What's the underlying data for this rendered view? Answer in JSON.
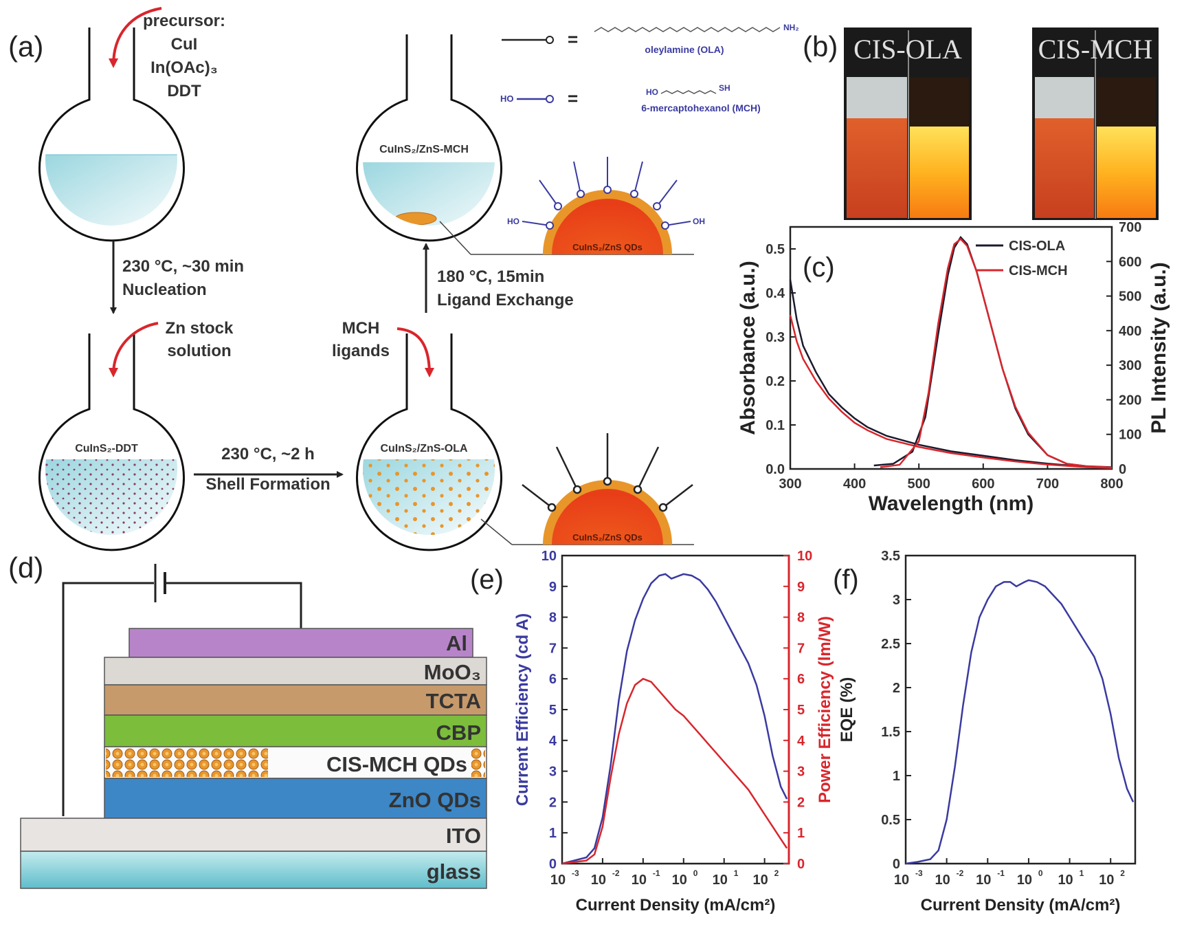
{
  "panel_a": {
    "label": "(a)",
    "precursor": [
      "precursor:",
      "CuI",
      "In(OAc)₃",
      "DDT"
    ],
    "nucleation": [
      "230 °C, ~30 min",
      "Nucleation"
    ],
    "zn_stock": [
      "Zn stock",
      "solution"
    ],
    "flask_ddt": "CuInS₂-DDT",
    "shell": [
      "230 °C, ~2 h",
      "Shell Formation"
    ],
    "mch_ligands": [
      "MCH",
      "ligands"
    ],
    "flask_ola": "CuInS₂/ZnS-OLA",
    "ligand_exchange": [
      "180 °C, 15min",
      "Ligand Exchange"
    ],
    "flask_mch": "CuInS₂/ZnS-MCH",
    "qd_label": "CuInS₂/ZnS QDs",
    "legend_ola_end": "NH₂",
    "legend_ola_name": "oleylamine (OLA)",
    "legend_mch_left": "HO",
    "legend_mch_end": "SH",
    "legend_mch_name": "6-mercaptohexanol (MCH)",
    "ligand_oh": "OH",
    "ligand_ho": "HO",
    "equals": "="
  },
  "panel_b": {
    "label": "(b)",
    "vials": [
      "CIS-OLA",
      "CIS-MCH"
    ]
  },
  "panel_d": {
    "label": "(d)",
    "layers": [
      {
        "name": "Al",
        "color": "#b784c9"
      },
      {
        "name": "MoO₃",
        "color": "#dcd8d4"
      },
      {
        "name": "TCTA",
        "color": "#c79a6c"
      },
      {
        "name": "CBP",
        "color": "#7cbd3c"
      },
      {
        "name": "CIS-MCH QDs",
        "color": "#e9a23a"
      },
      {
        "name": "ZnO QDs",
        "color": "#3d87c6"
      },
      {
        "name": "ITO",
        "color": "#e8e4e2"
      },
      {
        "name": "glass",
        "color": "#8fd0d8"
      }
    ]
  },
  "colors": {
    "black_series": "#1a1a2e",
    "red_series": "#d8262c",
    "blue_series": "#3a3aa0",
    "red_axis": "#d8262c"
  },
  "chart_data": [
    {
      "id": "c",
      "label": "(c)",
      "type": "line",
      "xlabel": "Wavelength (nm)",
      "ylabel": "Absorbance (a.u.)",
      "y2label": "PL Intensity (a.u.)",
      "xlim": [
        300,
        800
      ],
      "ylim": [
        0,
        0.55
      ],
      "y2lim": [
        0,
        700
      ],
      "xticks": [
        300,
        400,
        500,
        600,
        700,
        800
      ],
      "yticks": [
        0.0,
        0.1,
        0.2,
        0.3,
        0.4,
        0.5
      ],
      "y2ticks": [
        0,
        100,
        200,
        300,
        400,
        500,
        600,
        700
      ],
      "ytick_labels": [
        "0.0",
        "0.1",
        "0.2",
        "0.3",
        "0.4",
        "0.5"
      ],
      "legend": [
        "CIS-OLA",
        "CIS-MCH"
      ],
      "series": [
        {
          "name": "CIS-OLA absorbance",
          "axis": "left",
          "color": "#1a1a2e",
          "x": [
            300,
            310,
            320,
            340,
            360,
            380,
            400,
            420,
            450,
            500,
            550,
            600,
            650,
            700,
            750,
            800
          ],
          "y": [
            0.43,
            0.34,
            0.28,
            0.22,
            0.17,
            0.14,
            0.115,
            0.095,
            0.075,
            0.055,
            0.04,
            0.03,
            0.02,
            0.012,
            0.006,
            0.003
          ]
        },
        {
          "name": "CIS-MCH absorbance",
          "axis": "left",
          "color": "#d8262c",
          "x": [
            300,
            310,
            320,
            340,
            360,
            380,
            400,
            420,
            450,
            500,
            550,
            600,
            650,
            700,
            750,
            800
          ],
          "y": [
            0.35,
            0.29,
            0.25,
            0.2,
            0.16,
            0.13,
            0.105,
            0.088,
            0.068,
            0.05,
            0.036,
            0.026,
            0.017,
            0.01,
            0.005,
            0.002
          ]
        },
        {
          "name": "CIS-OLA PL",
          "axis": "right",
          "color": "#1a1a2e",
          "x": [
            430,
            460,
            490,
            510,
            530,
            545,
            555,
            565,
            575,
            590,
            610,
            630,
            650,
            670,
            700,
            730,
            760,
            800
          ],
          "y": [
            10,
            15,
            50,
            150,
            390,
            560,
            640,
            670,
            650,
            570,
            430,
            290,
            175,
            100,
            40,
            15,
            8,
            5
          ]
        },
        {
          "name": "CIS-MCH PL",
          "axis": "right",
          "color": "#d8262c",
          "x": [
            440,
            470,
            500,
            515,
            530,
            545,
            555,
            565,
            575,
            590,
            610,
            630,
            650,
            670,
            700,
            730,
            760,
            800
          ],
          "y": [
            5,
            12,
            80,
            220,
            420,
            580,
            650,
            665,
            645,
            570,
            430,
            290,
            180,
            105,
            40,
            15,
            8,
            4
          ]
        }
      ]
    },
    {
      "id": "e",
      "label": "(e)",
      "type": "line",
      "xlabel": "Current Density (mA/cm²)",
      "ylabel": "Current Efficiency (cd A)",
      "y2label": "Power Efficiency (lm/W)",
      "xscale": "log",
      "xlim": [
        -3,
        2.6
      ],
      "ylim": [
        0,
        10
      ],
      "y2lim": [
        0,
        10
      ],
      "xticks": [
        -3,
        -2,
        -1,
        0,
        1,
        2
      ],
      "xtick_base": "10",
      "xtick_exps": [
        "-3",
        "-2",
        "-1",
        "0",
        "1",
        "2"
      ],
      "yticks": [
        0,
        1,
        2,
        3,
        4,
        5,
        6,
        7,
        8,
        9,
        10
      ],
      "y2ticks": [
        0,
        1,
        2,
        3,
        4,
        5,
        6,
        7,
        8,
        9,
        10
      ],
      "series": [
        {
          "name": "Current Efficiency",
          "axis": "left",
          "color": "#3a3aa0",
          "logx": [
            -3.0,
            -2.7,
            -2.4,
            -2.2,
            -2.0,
            -1.8,
            -1.6,
            -1.4,
            -1.2,
            -1.0,
            -0.8,
            -0.6,
            -0.45,
            -0.3,
            -0.1,
            0.0,
            0.2,
            0.4,
            0.6,
            0.8,
            1.0,
            1.2,
            1.4,
            1.6,
            1.8,
            2.0,
            2.2,
            2.4,
            2.55
          ],
          "y": [
            0.0,
            0.1,
            0.2,
            0.5,
            1.5,
            3.2,
            5.3,
            6.9,
            7.9,
            8.6,
            9.1,
            9.35,
            9.4,
            9.25,
            9.35,
            9.4,
            9.35,
            9.2,
            8.9,
            8.5,
            8.0,
            7.5,
            7.0,
            6.5,
            5.8,
            4.8,
            3.5,
            2.5,
            2.1
          ]
        },
        {
          "name": "Power Efficiency",
          "axis": "right",
          "color": "#d8262c",
          "logx": [
            -3.0,
            -2.7,
            -2.4,
            -2.2,
            -2.0,
            -1.8,
            -1.6,
            -1.4,
            -1.2,
            -1.0,
            -0.8,
            -0.6,
            -0.4,
            -0.2,
            0.0,
            0.2,
            0.4,
            0.6,
            0.8,
            1.0,
            1.2,
            1.4,
            1.6,
            1.8,
            2.0,
            2.2,
            2.4,
            2.55
          ],
          "y": [
            0.0,
            0.05,
            0.1,
            0.3,
            1.2,
            2.8,
            4.2,
            5.2,
            5.8,
            6.0,
            5.9,
            5.6,
            5.3,
            5.0,
            4.8,
            4.5,
            4.2,
            3.9,
            3.6,
            3.3,
            3.0,
            2.7,
            2.4,
            2.0,
            1.6,
            1.2,
            0.8,
            0.5
          ]
        }
      ]
    },
    {
      "id": "f",
      "label": "(f)",
      "type": "line",
      "xlabel": "Current Density (mA/cm²)",
      "ylabel": "EQE (%)",
      "xscale": "log",
      "xlim": [
        -3,
        2.6
      ],
      "ylim": [
        0,
        3.5
      ],
      "xticks": [
        -3,
        -2,
        -1,
        0,
        1,
        2
      ],
      "xtick_base": "10",
      "xtick_exps": [
        "-3",
        "-2",
        "-1",
        "0",
        "1",
        "2"
      ],
      "yticks": [
        0,
        0.5,
        1,
        1.5,
        2,
        2.5,
        3,
        3.5
      ],
      "ytick_labels": [
        "0",
        "0.5",
        "1",
        "1.5",
        "2",
        "2.5",
        "3",
        "3.5"
      ],
      "series": [
        {
          "name": "EQE",
          "axis": "left",
          "color": "#3a3aa0",
          "logx": [
            -3.0,
            -2.7,
            -2.4,
            -2.2,
            -2.0,
            -1.8,
            -1.6,
            -1.4,
            -1.2,
            -1.0,
            -0.8,
            -0.6,
            -0.45,
            -0.3,
            -0.1,
            0.0,
            0.2,
            0.4,
            0.6,
            0.8,
            1.0,
            1.2,
            1.4,
            1.6,
            1.8,
            2.0,
            2.2,
            2.4,
            2.55
          ],
          "y": [
            0.0,
            0.02,
            0.05,
            0.15,
            0.5,
            1.1,
            1.8,
            2.4,
            2.8,
            3.0,
            3.15,
            3.2,
            3.2,
            3.15,
            3.2,
            3.22,
            3.2,
            3.15,
            3.05,
            2.95,
            2.8,
            2.65,
            2.5,
            2.35,
            2.1,
            1.7,
            1.2,
            0.85,
            0.7
          ]
        }
      ]
    }
  ]
}
